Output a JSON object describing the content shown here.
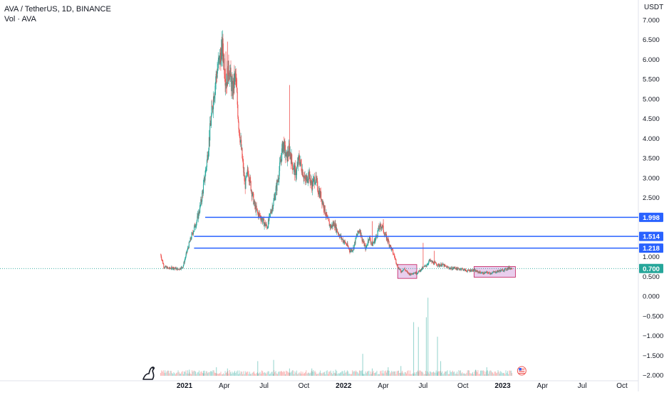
{
  "header": {
    "symbol": "AVA / TetherUS, 1D, BINANCE",
    "volume_label": "Vol · AVA"
  },
  "axis": {
    "unit": "USDT"
  },
  "chart_data": {
    "type": "candlestick",
    "title": "AVA / TetherUS, 1D, BINANCE",
    "xlabel": "",
    "ylabel": "",
    "y_ticks": [
      "7.000",
      "6.500",
      "6.000",
      "5.500",
      "5.000",
      "4.500",
      "4.000",
      "3.500",
      "3.000",
      "2.500",
      "2.000",
      "1.500",
      "1.000",
      "0.500",
      "0.000",
      "−0.500",
      "−1.000",
      "−1.500",
      "−2.000"
    ],
    "ylim": [
      -2.1,
      7.3
    ],
    "x_ticks": [
      {
        "label": "2021",
        "t": 2021.0
      },
      {
        "label": "Apr",
        "t": 2021.25
      },
      {
        "label": "Jul",
        "t": 2021.5
      },
      {
        "label": "Oct",
        "t": 2021.75
      },
      {
        "label": "2022",
        "t": 2022.0
      },
      {
        "label": "Apr",
        "t": 2022.25
      },
      {
        "label": "Jul",
        "t": 2022.5
      },
      {
        "label": "Oct",
        "t": 2022.75
      },
      {
        "label": "2023",
        "t": 2023.0
      },
      {
        "label": "Apr",
        "t": 2023.25
      },
      {
        "label": "Jul",
        "t": 2023.5
      },
      {
        "label": "Oct",
        "t": 2023.75
      }
    ],
    "price_path": [
      [
        2020.85,
        1.05
      ],
      [
        2020.87,
        0.75
      ],
      [
        2020.9,
        0.7
      ],
      [
        2020.93,
        0.72
      ],
      [
        2020.96,
        0.68
      ],
      [
        2020.99,
        0.75
      ],
      [
        2021.02,
        1.2
      ],
      [
        2021.05,
        1.6
      ],
      [
        2021.08,
        1.95
      ],
      [
        2021.1,
        2.3
      ],
      [
        2021.12,
        2.8
      ],
      [
        2021.14,
        3.4
      ],
      [
        2021.16,
        4.2
      ],
      [
        2021.18,
        5.0
      ],
      [
        2021.2,
        5.6
      ],
      [
        2021.22,
        6.0
      ],
      [
        2021.24,
        6.3
      ],
      [
        2021.26,
        5.4
      ],
      [
        2021.28,
        5.8
      ],
      [
        2021.3,
        5.2
      ],
      [
        2021.32,
        5.6
      ],
      [
        2021.34,
        4.4
      ],
      [
        2021.36,
        3.6
      ],
      [
        2021.38,
        2.8
      ],
      [
        2021.4,
        3.2
      ],
      [
        2021.42,
        2.7
      ],
      [
        2021.44,
        2.3
      ],
      [
        2021.46,
        2.1
      ],
      [
        2021.48,
        2.0
      ],
      [
        2021.5,
        1.85
      ],
      [
        2021.52,
        1.75
      ],
      [
        2021.54,
        2.1
      ],
      [
        2021.56,
        2.4
      ],
      [
        2021.58,
        2.8
      ],
      [
        2021.6,
        3.3
      ],
      [
        2021.62,
        3.9
      ],
      [
        2021.64,
        3.5
      ],
      [
        2021.66,
        3.7
      ],
      [
        2021.68,
        3.3
      ],
      [
        2021.7,
        3.1
      ],
      [
        2021.72,
        3.5
      ],
      [
        2021.74,
        3.2
      ],
      [
        2021.76,
        2.9
      ],
      [
        2021.78,
        3.1
      ],
      [
        2021.8,
        2.8
      ],
      [
        2021.82,
        3.0
      ],
      [
        2021.84,
        2.7
      ],
      [
        2021.86,
        2.5
      ],
      [
        2021.88,
        2.2
      ],
      [
        2021.9,
        1.9
      ],
      [
        2021.92,
        1.75
      ],
      [
        2021.94,
        1.85
      ],
      [
        2021.96,
        1.65
      ],
      [
        2021.98,
        1.5
      ],
      [
        2022.0,
        1.4
      ],
      [
        2022.02,
        1.3
      ],
      [
        2022.04,
        1.15
      ],
      [
        2022.06,
        1.2
      ],
      [
        2022.08,
        1.5
      ],
      [
        2022.1,
        1.7
      ],
      [
        2022.12,
        1.4
      ],
      [
        2022.14,
        1.2
      ],
      [
        2022.16,
        1.5
      ],
      [
        2022.18,
        1.3
      ],
      [
        2022.2,
        1.45
      ],
      [
        2022.22,
        1.7
      ],
      [
        2022.24,
        1.8
      ],
      [
        2022.26,
        1.55
      ],
      [
        2022.28,
        1.4
      ],
      [
        2022.3,
        1.2
      ],
      [
        2022.32,
        1.0
      ],
      [
        2022.34,
        0.75
      ],
      [
        2022.36,
        0.62
      ],
      [
        2022.38,
        0.7
      ],
      [
        2022.4,
        0.6
      ],
      [
        2022.42,
        0.55
      ],
      [
        2022.44,
        0.6
      ],
      [
        2022.46,
        0.58
      ],
      [
        2022.48,
        0.65
      ],
      [
        2022.5,
        0.72
      ],
      [
        2022.52,
        0.78
      ],
      [
        2022.54,
        0.9
      ],
      [
        2022.56,
        0.85
      ],
      [
        2022.58,
        0.82
      ],
      [
        2022.6,
        0.78
      ],
      [
        2022.62,
        0.8
      ],
      [
        2022.64,
        0.75
      ],
      [
        2022.66,
        0.72
      ],
      [
        2022.68,
        0.7
      ],
      [
        2022.7,
        0.72
      ],
      [
        2022.72,
        0.68
      ],
      [
        2022.74,
        0.7
      ],
      [
        2022.76,
        0.66
      ],
      [
        2022.78,
        0.64
      ],
      [
        2022.8,
        0.66
      ],
      [
        2022.82,
        0.65
      ],
      [
        2022.84,
        0.62
      ],
      [
        2022.86,
        0.6
      ],
      [
        2022.88,
        0.58
      ],
      [
        2022.9,
        0.6
      ],
      [
        2022.92,
        0.58
      ],
      [
        2022.94,
        0.6
      ],
      [
        2022.96,
        0.62
      ],
      [
        2022.98,
        0.64
      ],
      [
        2023.0,
        0.66
      ],
      [
        2023.02,
        0.68
      ],
      [
        2023.04,
        0.72
      ],
      [
        2023.06,
        0.7
      ]
    ],
    "spikes": [
      [
        2021.27,
        6.45
      ],
      [
        2021.26,
        6.2
      ],
      [
        2021.66,
        5.35
      ],
      [
        2022.25,
        1.95
      ],
      [
        2022.5,
        1.35
      ],
      [
        2022.57,
        1.15
      ],
      [
        2022.18,
        1.9
      ]
    ],
    "horizontal_levels": [
      {
        "value": 1.998,
        "label": "1.998",
        "start_t": 2021.13,
        "color": "#2962ff"
      },
      {
        "value": 1.514,
        "label": "1.514",
        "start_t": 2021.06,
        "color": "#2962ff"
      },
      {
        "value": 1.218,
        "label": "1.218",
        "start_t": 2021.06,
        "color": "#2962ff"
      }
    ],
    "last_price": {
      "value": 0.7,
      "label": "0.700",
      "color": "#26a69a"
    },
    "highlight_boxes": [
      {
        "t0": 2022.34,
        "t1": 2022.46,
        "y0": 0.45,
        "y1": 0.8
      },
      {
        "t0": 2022.82,
        "t1": 2023.08,
        "y0": 0.48,
        "y1": 0.75
      }
    ],
    "volume": [
      [
        2021.03,
        0.25
      ],
      [
        2021.12,
        0.2
      ],
      [
        2021.2,
        0.35
      ],
      [
        2021.27,
        0.3
      ],
      [
        2021.46,
        0.6
      ],
      [
        2021.56,
        0.65
      ],
      [
        2021.66,
        0.3
      ],
      [
        2021.8,
        0.3
      ],
      [
        2021.95,
        0.25
      ],
      [
        2022.12,
        0.9
      ],
      [
        2022.18,
        0.3
      ],
      [
        2022.28,
        0.35
      ],
      [
        2022.36,
        0.4
      ],
      [
        2022.44,
        2.2
      ],
      [
        2022.47,
        2.0
      ],
      [
        2022.52,
        2.4
      ],
      [
        2022.53,
        3.2
      ],
      [
        2022.59,
        1.6
      ],
      [
        2022.61,
        0.6
      ],
      [
        2022.83,
        0.25
      ],
      [
        2022.9,
        0.35
      ]
    ]
  },
  "colors": {
    "up": "#26a69a",
    "down": "#ef5350",
    "level": "#2962ff",
    "box_fill": "#e1bee7",
    "box_stroke": "#c2185b",
    "text": "#131722",
    "axis_text": "#131722"
  },
  "icons": {
    "logo": "tradingview-dino-icon",
    "flag": "us-flag-icon"
  }
}
